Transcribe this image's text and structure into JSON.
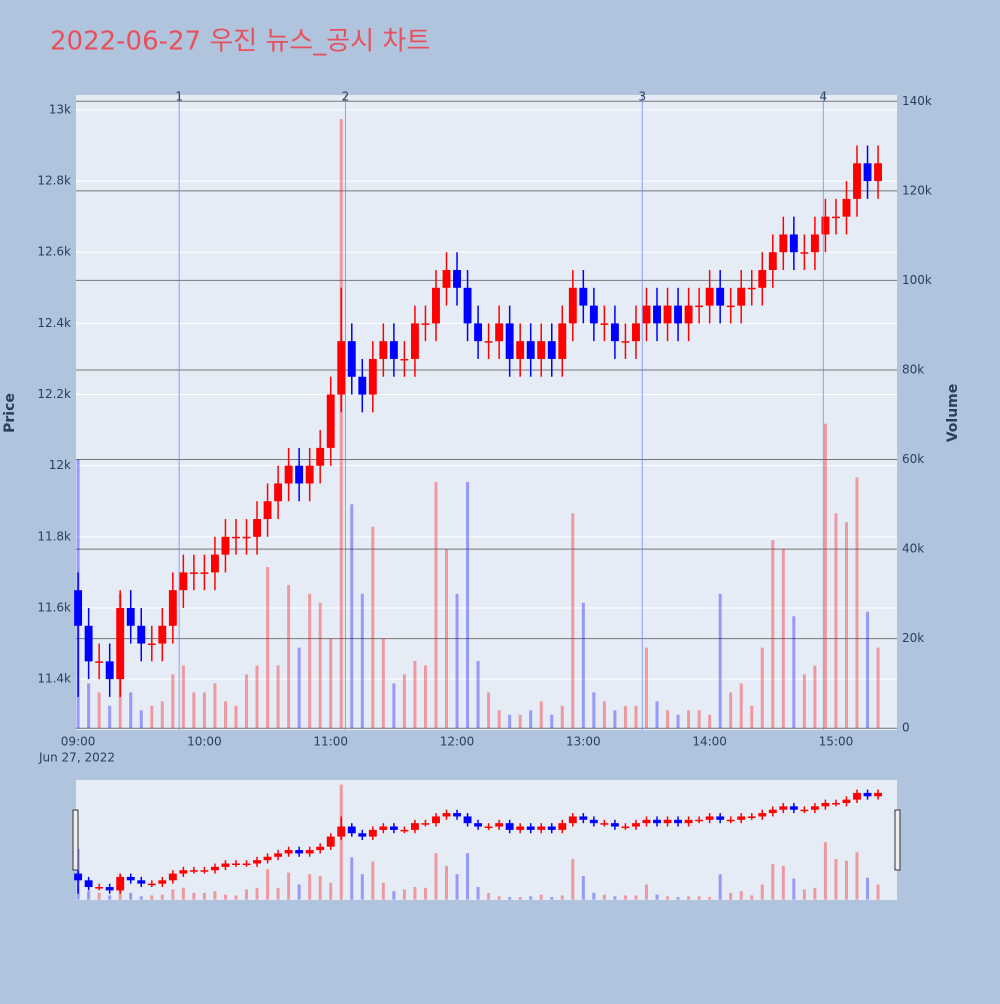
{
  "chart_data": {
    "type": "candlestick",
    "title": "2022-06-27 우진 뉴스_공시 차트",
    "ylabel": "Price",
    "y2label": "Volume",
    "x_date_label": "Jun 27, 2022",
    "increasing_color": "#ff0000",
    "decreasing_color": "#0000ff",
    "x": [
      "09:00",
      "09:05",
      "09:10",
      "09:15",
      "09:20",
      "09:25",
      "09:30",
      "09:35",
      "09:40",
      "09:45",
      "09:50",
      "09:55",
      "10:00",
      "10:05",
      "10:10",
      "10:15",
      "10:20",
      "10:25",
      "10:30",
      "10:35",
      "10:40",
      "10:45",
      "10:50",
      "10:55",
      "11:00",
      "11:05",
      "11:10",
      "11:15",
      "11:20",
      "11:25",
      "11:30",
      "11:35",
      "11:40",
      "11:45",
      "11:50",
      "11:55",
      "12:00",
      "12:05",
      "12:10",
      "12:15",
      "12:20",
      "12:25",
      "12:30",
      "12:35",
      "12:40",
      "12:45",
      "12:50",
      "12:55",
      "13:00",
      "13:05",
      "13:10",
      "13:15",
      "13:20",
      "13:25",
      "13:30",
      "13:35",
      "13:40",
      "13:45",
      "13:50",
      "13:55",
      "14:00",
      "14:05",
      "14:10",
      "14:15",
      "14:20",
      "14:25",
      "14:30",
      "14:35",
      "14:40",
      "14:45",
      "14:50",
      "14:55",
      "15:00",
      "15:05",
      "15:10",
      "15:15",
      "15:20"
    ],
    "open": [
      11650,
      11550,
      11450,
      11450,
      11400,
      11600,
      11550,
      11500,
      11500,
      11550,
      11650,
      11700,
      11700,
      11700,
      11750,
      11800,
      11800,
      11800,
      11850,
      11900,
      11950,
      12000,
      11950,
      12000,
      12050,
      12200,
      12350,
      12250,
      12200,
      12300,
      12350,
      12300,
      12300,
      12400,
      12400,
      12500,
      12550,
      12500,
      12400,
      12350,
      12350,
      12400,
      12300,
      12350,
      12300,
      12350,
      12300,
      12400,
      12500,
      12450,
      12400,
      12400,
      12350,
      12350,
      12400,
      12450,
      12400,
      12450,
      12400,
      12450,
      12450,
      12500,
      12450,
      12450,
      12500,
      12500,
      12550,
      12600,
      12650,
      12600,
      12600,
      12650,
      12700,
      12700,
      12750,
      12850,
      12800
    ],
    "high": [
      11700,
      11600,
      11500,
      11500,
      11650,
      11650,
      11600,
      11550,
      11600,
      11700,
      11750,
      11750,
      11750,
      11800,
      11850,
      11850,
      11850,
      11900,
      11950,
      12000,
      12050,
      12050,
      12050,
      12100,
      12250,
      12500,
      12400,
      12300,
      12350,
      12400,
      12400,
      12350,
      12450,
      12450,
      12550,
      12600,
      12600,
      12550,
      12450,
      12400,
      12450,
      12450,
      12400,
      12400,
      12400,
      12400,
      12450,
      12550,
      12550,
      12500,
      12450,
      12450,
      12400,
      12450,
      12500,
      12500,
      12500,
      12500,
      12500,
      12500,
      12550,
      12550,
      12500,
      12550,
      12550,
      12600,
      12650,
      12700,
      12700,
      12650,
      12700,
      12750,
      12750,
      12800,
      12900,
      12900,
      12900
    ],
    "low": [
      11350,
      11400,
      11400,
      11350,
      11350,
      11500,
      11450,
      11450,
      11450,
      11500,
      11600,
      11650,
      11650,
      11650,
      11700,
      11750,
      11750,
      11750,
      11800,
      11850,
      11900,
      11900,
      11900,
      11950,
      12000,
      12150,
      12200,
      12150,
      12150,
      12250,
      12250,
      12250,
      12250,
      12350,
      12350,
      12450,
      12450,
      12350,
      12300,
      12300,
      12300,
      12250,
      12250,
      12250,
      12250,
      12250,
      12250,
      12350,
      12400,
      12350,
      12350,
      12300,
      12300,
      12300,
      12350,
      12350,
      12350,
      12350,
      12350,
      12400,
      12400,
      12400,
      12400,
      12400,
      12450,
      12450,
      12500,
      12550,
      12550,
      12550,
      12550,
      12600,
      12650,
      12650,
      12700,
      12750,
      12750
    ],
    "close": [
      11550,
      11450,
      11450,
      11400,
      11600,
      11550,
      11500,
      11500,
      11550,
      11650,
      11700,
      11700,
      11700,
      11750,
      11800,
      11800,
      11800,
      11850,
      11900,
      11950,
      12000,
      11950,
      12000,
      12050,
      12200,
      12350,
      12250,
      12200,
      12300,
      12350,
      12300,
      12300,
      12400,
      12400,
      12500,
      12550,
      12500,
      12400,
      12350,
      12350,
      12400,
      12300,
      12350,
      12300,
      12350,
      12300,
      12400,
      12500,
      12450,
      12400,
      12400,
      12350,
      12350,
      12400,
      12450,
      12400,
      12450,
      12400,
      12450,
      12450,
      12500,
      12450,
      12450,
      12500,
      12500,
      12550,
      12600,
      12650,
      12600,
      12600,
      12650,
      12700,
      12700,
      12750,
      12850,
      12800,
      12850
    ],
    "volume": [
      60000,
      10000,
      8000,
      5000,
      30000,
      8000,
      4000,
      5000,
      6000,
      12000,
      14000,
      8000,
      8000,
      10000,
      6000,
      5000,
      12000,
      14000,
      36000,
      14000,
      32000,
      18000,
      30000,
      28000,
      20000,
      136000,
      50000,
      30000,
      45000,
      20000,
      10000,
      12000,
      15000,
      14000,
      55000,
      40000,
      30000,
      55000,
      15000,
      8000,
      4000,
      3000,
      3000,
      4000,
      6000,
      3000,
      5000,
      48000,
      28000,
      8000,
      6000,
      4000,
      5000,
      5000,
      18000,
      6000,
      4000,
      3000,
      4000,
      4000,
      3000,
      30000,
      8000,
      10000,
      5000,
      18000,
      42000,
      40000,
      25000,
      12000,
      14000,
      68000,
      48000,
      46000,
      56000,
      26000,
      18000
    ],
    "xlim": [
      "08:59",
      "15:29"
    ],
    "xticks": [
      "09:00",
      "10:00",
      "11:00",
      "12:00",
      "13:00",
      "14:00",
      "15:00"
    ],
    "ylim": [
      11257,
      13042
    ],
    "yticks": [
      {
        "value": 11400,
        "label": "11.4k"
      },
      {
        "value": 11600,
        "label": "11.6k"
      },
      {
        "value": 11800,
        "label": "11.8k"
      },
      {
        "value": 12000,
        "label": "12k"
      },
      {
        "value": 12200,
        "label": "12.2k"
      },
      {
        "value": 12400,
        "label": "12.4k"
      },
      {
        "value": 12600,
        "label": "12.6k"
      },
      {
        "value": 12800,
        "label": "12.8k"
      },
      {
        "value": 13000,
        "label": "13k"
      }
    ],
    "y2lim": [
      -400,
      141400
    ],
    "y2ticks": [
      0,
      {
        "value": 20000,
        "label": "20k"
      },
      {
        "value": 40000,
        "label": "40k"
      },
      {
        "value": 60000,
        "label": "60k"
      },
      {
        "value": 80000,
        "label": "80k"
      },
      {
        "value": 100000,
        "label": "100k"
      },
      {
        "value": 120000,
        "label": "120k"
      },
      {
        "value": 140000,
        "label": "140k"
      }
    ],
    "news_markers": [
      {
        "label": "1",
        "x": "09:48"
      },
      {
        "label": "2",
        "x": "11:07"
      },
      {
        "label": "3",
        "x": "13:28"
      },
      {
        "label": "4",
        "x": "14:54"
      }
    ]
  }
}
